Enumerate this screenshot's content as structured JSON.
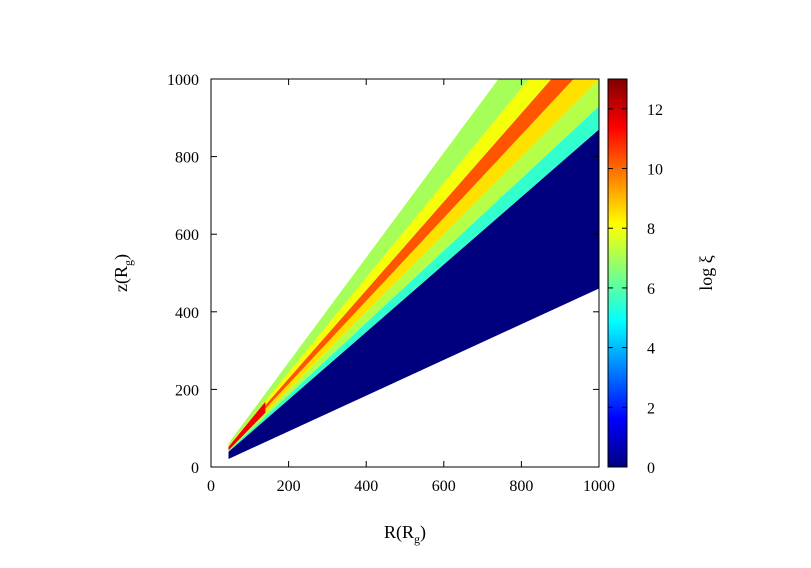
{
  "chart_data": {
    "type": "heatmap",
    "title": "",
    "xlabel": "R(R",
    "xlabel_sub": "g",
    "xlabel_close": ")",
    "ylabel": "z(R",
    "ylabel_sub": "g",
    "ylabel_close": ")",
    "colorbar_label": "log ξ",
    "xlim": [
      0,
      1000
    ],
    "ylim": [
      0,
      1000
    ],
    "x_ticks": [
      0,
      200,
      400,
      600,
      800,
      1000
    ],
    "y_ticks": [
      0,
      200,
      400,
      600,
      800,
      1000
    ],
    "color_range": [
      0,
      13
    ],
    "colorbar_ticks": [
      0,
      2,
      4,
      6,
      8,
      10,
      12
    ],
    "colormap": [
      "#00007f",
      "#0000ff",
      "#007fff",
      "#00ffff",
      "#7fff7f",
      "#ffff00",
      "#ff7f00",
      "#ff0000",
      "#7f0000"
    ],
    "grid": false,
    "slope_bounds": {
      "inner_min": 0.46,
      "inner_max": 0.87,
      "outer_min": 0.87,
      "outer_max": 1.35
    },
    "bands": [
      {
        "slope_min": 0.46,
        "slope_max": 0.87,
        "value": 0.0
      },
      {
        "slope_min": 0.87,
        "slope_max": 0.93,
        "value": 5.5
      },
      {
        "slope_min": 0.93,
        "slope_max": 1.0,
        "value": 7.2
      },
      {
        "slope_min": 1.0,
        "slope_max": 1.07,
        "value": 8.5
      },
      {
        "slope_min": 1.07,
        "slope_max": 1.14,
        "value": 10.3
      },
      {
        "slope_min": 1.14,
        "slope_max": 1.22,
        "value": 8.0
      },
      {
        "slope_min": 1.22,
        "slope_max": 1.35,
        "value": 7.0
      }
    ]
  }
}
